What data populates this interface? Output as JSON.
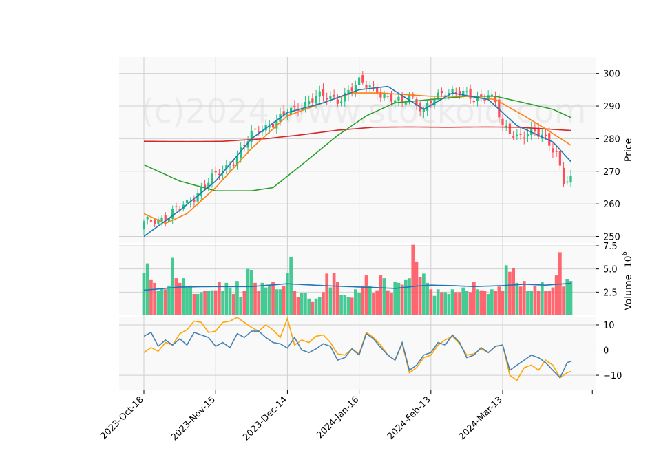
{
  "watermark": "(c)2024 www.stockoid.com",
  "colors": {
    "up": "#26c281",
    "down": "#ff4d57",
    "panel_bg": "#f9f9f9",
    "grid": "#d0d0d0",
    "sma_short": "#1f77b4",
    "sma_mid": "#ff7f0e",
    "sma_long": "#2ca02c",
    "sma_xlong": "#d62728",
    "vol_ma": "#1f77b4",
    "osc_a": "#4682b4",
    "osc_b": "#ffa500"
  },
  "chart_data": {
    "type": "candlestick",
    "x_labels": [
      "2023-Oct-18",
      "2023-Nov-15",
      "2023-Dec-14",
      "2024-Jan-16",
      "2024-Feb-13",
      "2024-Mar-13"
    ],
    "x_label_index": [
      0,
      20,
      40,
      60,
      80,
      100
    ],
    "n_bars": 120,
    "price_panel": {
      "ylabel": "Price",
      "ylim": [
        248,
        305
      ],
      "yticks": [
        250,
        260,
        270,
        280,
        290,
        300
      ],
      "anchors": [
        [
          0,
          254
        ],
        [
          6,
          256
        ],
        [
          12,
          260
        ],
        [
          18,
          267
        ],
        [
          24,
          272
        ],
        [
          30,
          281
        ],
        [
          36,
          285
        ],
        [
          42,
          289
        ],
        [
          48,
          293
        ],
        [
          54,
          292
        ],
        [
          60,
          297
        ],
        [
          64,
          296
        ],
        [
          68,
          292
        ],
        [
          72,
          291
        ],
        [
          74,
          294
        ],
        [
          76,
          291
        ],
        [
          78,
          288
        ],
        [
          80,
          291
        ],
        [
          84,
          295
        ],
        [
          88,
          294
        ],
        [
          92,
          292
        ],
        [
          96,
          294
        ],
        [
          98,
          291
        ],
        [
          100,
          283
        ],
        [
          104,
          281
        ],
        [
          108,
          282
        ],
        [
          112,
          280
        ],
        [
          115,
          276
        ],
        [
          117,
          267
        ],
        [
          119,
          267
        ]
      ],
      "sma_short": [
        [
          0,
          250
        ],
        [
          10,
          258
        ],
        [
          20,
          267
        ],
        [
          30,
          280
        ],
        [
          40,
          288
        ],
        [
          50,
          291
        ],
        [
          60,
          295
        ],
        [
          68,
          296
        ],
        [
          78,
          289
        ],
        [
          86,
          294
        ],
        [
          96,
          292
        ],
        [
          104,
          284
        ],
        [
          110,
          281
        ],
        [
          114,
          279
        ],
        [
          119,
          273
        ]
      ],
      "sma_mid": [
        [
          0,
          257
        ],
        [
          6,
          254
        ],
        [
          12,
          257
        ],
        [
          20,
          265
        ],
        [
          30,
          277
        ],
        [
          40,
          287
        ],
        [
          50,
          291
        ],
        [
          58,
          294
        ],
        [
          66,
          294
        ],
        [
          80,
          293
        ],
        [
          90,
          293
        ],
        [
          98,
          292
        ],
        [
          106,
          287
        ],
        [
          112,
          283
        ],
        [
          119,
          278
        ]
      ],
      "sma_long": [
        [
          0,
          272
        ],
        [
          10,
          267
        ],
        [
          20,
          264
        ],
        [
          30,
          264
        ],
        [
          36,
          265
        ],
        [
          44,
          272
        ],
        [
          54,
          281
        ],
        [
          62,
          287
        ],
        [
          70,
          291
        ],
        [
          80,
          292
        ],
        [
          90,
          293
        ],
        [
          98,
          293
        ],
        [
          106,
          291
        ],
        [
          114,
          289
        ],
        [
          119,
          286.5
        ]
      ],
      "sma_xlong": [
        [
          0,
          279.2
        ],
        [
          12,
          279.1
        ],
        [
          22,
          279.2
        ],
        [
          34,
          280
        ],
        [
          44,
          281.2
        ],
        [
          54,
          282.6
        ],
        [
          64,
          283.5
        ],
        [
          74,
          283.6
        ],
        [
          84,
          283.5
        ],
        [
          96,
          283.6
        ],
        [
          104,
          283.5
        ],
        [
          112,
          283
        ],
        [
          119,
          282.5
        ]
      ]
    },
    "volume_panel": {
      "ylabel": "Volume",
      "y_unit": "10^6",
      "ylim": [
        0,
        7.5
      ],
      "yticks": [
        2.5,
        5.0,
        7.5
      ],
      "values": [
        4.6,
        5.6,
        3.8,
        3.5,
        2.6,
        2.9,
        2.8,
        3.2,
        6.2,
        4.0,
        3.5,
        4.0,
        3.0,
        3.2,
        2.3,
        2.3,
        2.5,
        2.6,
        2.6,
        2.7,
        2.7,
        3.6,
        2.6,
        3.5,
        3.0,
        2.3,
        3.7,
        2.0,
        2.6,
        5.0,
        4.9,
        3.5,
        2.6,
        3.5,
        3.0,
        3.3,
        3.6,
        2.8,
        2.8,
        3.2,
        4.6,
        6.3,
        2.6,
        2.0,
        2.4,
        2.4,
        1.8,
        1.5,
        1.8,
        2.0,
        2.5,
        4.5,
        3.0,
        4.6,
        3.6,
        2.2,
        2.2,
        2.0,
        1.9,
        2.8,
        2.4,
        3.2,
        4.3,
        3.2,
        2.4,
        2.7,
        4.3,
        4.0,
        2.7,
        2.4,
        3.6,
        3.5,
        3.3,
        3.8,
        4.0,
        7.6,
        5.8,
        4.1,
        4.5,
        3.5,
        2.8,
        2.1,
        2.8,
        2.5,
        2.5,
        2.3,
        2.8,
        2.5,
        2.5,
        3.0,
        2.6,
        2.5,
        3.6,
        2.8,
        2.7,
        2.6,
        2.3,
        2.8,
        2.6,
        3.1,
        2.6,
        5.4,
        4.7,
        5.1,
        3.5,
        3.1,
        3.7,
        2.6,
        2.6,
        3.2,
        2.6,
        3.6,
        2.6,
        2.6,
        3.0,
        4.3,
        6.8,
        3.1,
        3.9,
        3.7
      ],
      "ma": [
        [
          0,
          2.7
        ],
        [
          10,
          3.05
        ],
        [
          20,
          3.1
        ],
        [
          30,
          3.1
        ],
        [
          40,
          3.4
        ],
        [
          50,
          3.2
        ],
        [
          60,
          3.05
        ],
        [
          64,
          3.0
        ],
        [
          70,
          2.9
        ],
        [
          76,
          3.15
        ],
        [
          80,
          3.25
        ],
        [
          86,
          3.2
        ],
        [
          92,
          3.1
        ],
        [
          100,
          3.2
        ],
        [
          106,
          3.35
        ],
        [
          112,
          3.25
        ],
        [
          119,
          3.45
        ]
      ]
    },
    "oscillator_panel": {
      "ylim": [
        -16,
        13
      ],
      "yticks": [
        -10,
        0,
        10
      ],
      "line_a": [
        [
          0,
          5.5
        ],
        [
          2,
          7
        ],
        [
          4,
          1.5
        ],
        [
          6,
          4
        ],
        [
          8,
          2
        ],
        [
          10,
          4.5
        ],
        [
          12,
          2
        ],
        [
          14,
          7
        ],
        [
          16,
          6
        ],
        [
          18,
          5
        ],
        [
          20,
          1.5
        ],
        [
          22,
          3
        ],
        [
          24,
          1
        ],
        [
          26,
          6.5
        ],
        [
          28,
          5
        ],
        [
          30,
          7.5
        ],
        [
          32,
          7.5
        ],
        [
          34,
          5
        ],
        [
          36,
          3
        ],
        [
          38,
          2.5
        ],
        [
          40,
          0.8
        ],
        [
          42,
          5
        ],
        [
          44,
          0
        ],
        [
          46,
          -1
        ],
        [
          48,
          0.5
        ],
        [
          50,
          2.5
        ],
        [
          52,
          1.5
        ],
        [
          54,
          -4
        ],
        [
          56,
          -3
        ],
        [
          58,
          0.5
        ],
        [
          60,
          -2
        ],
        [
          62,
          6.5
        ],
        [
          64,
          4.5
        ],
        [
          66,
          1
        ],
        [
          68,
          -2
        ],
        [
          70,
          -4
        ],
        [
          72,
          3
        ],
        [
          74,
          -8
        ],
        [
          76,
          -6
        ],
        [
          78,
          -2
        ],
        [
          80,
          -1
        ],
        [
          82,
          3
        ],
        [
          84,
          2
        ],
        [
          86,
          6
        ],
        [
          88,
          3
        ],
        [
          90,
          -3
        ],
        [
          92,
          -2
        ],
        [
          94,
          1
        ],
        [
          96,
          -1
        ],
        [
          98,
          1.5
        ],
        [
          100,
          2
        ],
        [
          102,
          -8
        ],
        [
          104,
          -6
        ],
        [
          106,
          -4
        ],
        [
          108,
          -2
        ],
        [
          110,
          -3
        ],
        [
          112,
          -5
        ],
        [
          114,
          -8
        ],
        [
          116,
          -11
        ],
        [
          118,
          -5
        ],
        [
          119,
          -4.5
        ]
      ],
      "line_b": [
        [
          0,
          -1
        ],
        [
          2,
          1
        ],
        [
          4,
          -0.5
        ],
        [
          6,
          3
        ],
        [
          8,
          2
        ],
        [
          10,
          6.5
        ],
        [
          12,
          8
        ],
        [
          14,
          11.5
        ],
        [
          16,
          11
        ],
        [
          18,
          7
        ],
        [
          20,
          7.5
        ],
        [
          22,
          11
        ],
        [
          24,
          11.5
        ],
        [
          26,
          13
        ],
        [
          28,
          11
        ],
        [
          30,
          9
        ],
        [
          32,
          7.5
        ],
        [
          34,
          10
        ],
        [
          36,
          8
        ],
        [
          38,
          5
        ],
        [
          40,
          12.5
        ],
        [
          42,
          2
        ],
        [
          44,
          4
        ],
        [
          46,
          3
        ],
        [
          48,
          5.5
        ],
        [
          50,
          6
        ],
        [
          52,
          3
        ],
        [
          54,
          -1.5
        ],
        [
          56,
          -2
        ],
        [
          58,
          0.5
        ],
        [
          60,
          -1.5
        ],
        [
          62,
          7
        ],
        [
          64,
          5
        ],
        [
          66,
          2
        ],
        [
          68,
          -2
        ],
        [
          70,
          -4
        ],
        [
          72,
          2.5
        ],
        [
          74,
          -9
        ],
        [
          76,
          -7
        ],
        [
          78,
          -3
        ],
        [
          80,
          -2
        ],
        [
          82,
          2
        ],
        [
          84,
          4
        ],
        [
          86,
          5.5
        ],
        [
          88,
          2.5
        ],
        [
          90,
          -2
        ],
        [
          92,
          -1.5
        ],
        [
          94,
          0.5
        ],
        [
          96,
          -1
        ],
        [
          98,
          1.5
        ],
        [
          100,
          2
        ],
        [
          102,
          -10
        ],
        [
          104,
          -12
        ],
        [
          106,
          -7
        ],
        [
          108,
          -6
        ],
        [
          110,
          -8
        ],
        [
          112,
          -4
        ],
        [
          114,
          -6
        ],
        [
          116,
          -11
        ],
        [
          118,
          -9
        ],
        [
          119,
          -8.5
        ]
      ]
    }
  }
}
